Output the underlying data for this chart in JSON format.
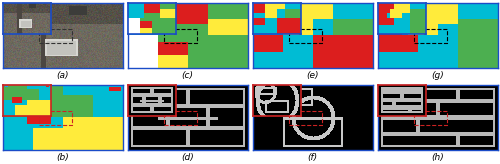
{
  "fig_width": 5.0,
  "fig_height": 1.64,
  "dpi": 100,
  "label_fontsize": 6.5,
  "background": "#ffffff",
  "colors": {
    "cyan": [
      0,
      188,
      212
    ],
    "green": [
      76,
      175,
      80
    ],
    "red": [
      220,
      30,
      30
    ],
    "yellow": [
      255,
      235,
      59
    ],
    "white": [
      255,
      255,
      255
    ],
    "black": [
      0,
      0,
      0
    ],
    "blue": [
      33,
      150,
      243
    ],
    "gray": [
      180,
      180,
      180
    ]
  },
  "border_top": "#1a4cc8",
  "border_bottom": "#1a4cc8",
  "inset_border_top": "#1a4cc8",
  "inset_border_bottom": "#cc2222",
  "dashed_color_top": "#000000",
  "dashed_color_bottom": "#cc2222",
  "connect_color_top": "#333333",
  "connect_color_bottom": "#cc2222"
}
